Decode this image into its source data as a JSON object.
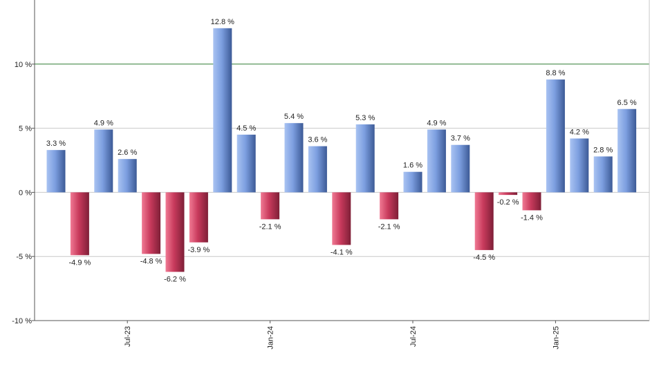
{
  "chart_data": {
    "type": "bar",
    "title": "",
    "xlabel": "",
    "ylabel": "",
    "ylim": [
      -10,
      15
    ],
    "yticks": [
      {
        "value": 10,
        "label": "10 %"
      },
      {
        "value": 5,
        "label": "5 %"
      },
      {
        "value": 0,
        "label": "0 %"
      },
      {
        "value": -5,
        "label": "-5 %"
      },
      {
        "value": -10,
        "label": "-10 %"
      }
    ],
    "reference_line": {
      "value": 10,
      "color": "#2e7d32"
    },
    "xticks": [
      {
        "index": 3,
        "label": "Jul-23"
      },
      {
        "index": 9,
        "label": "Jan-24"
      },
      {
        "index": 15,
        "label": "Jul-24"
      },
      {
        "index": 21,
        "label": "Jan-25"
      }
    ],
    "values": [
      3.3,
      -4.9,
      4.9,
      2.6,
      -4.8,
      -6.2,
      -3.9,
      12.8,
      4.5,
      -2.1,
      5.4,
      3.6,
      -4.1,
      5.3,
      -2.1,
      1.6,
      4.9,
      3.7,
      -4.5,
      -0.2,
      -1.4,
      8.8,
      4.2,
      2.8,
      6.5
    ],
    "labels": [
      "3.3 %",
      "-4.9 %",
      "4.9 %",
      "2.6 %",
      "-4.8 %",
      "-6.2 %",
      "-3.9 %",
      "12.8 %",
      "4.5 %",
      "-2.1 %",
      "5.4 %",
      "3.6 %",
      "-4.1 %",
      "5.3 %",
      "-2.1 %",
      "1.6 %",
      "4.9 %",
      "3.7 %",
      "-4.5 %",
      "-0.2 %",
      "-1.4 %",
      "8.8 %",
      "4.2 %",
      "2.8 %",
      "6.5 %"
    ],
    "colors": {
      "positive": "#7d9fe0",
      "negative": "#c83a5c",
      "grid": "#c8c8c8",
      "axis": "#555555"
    }
  }
}
